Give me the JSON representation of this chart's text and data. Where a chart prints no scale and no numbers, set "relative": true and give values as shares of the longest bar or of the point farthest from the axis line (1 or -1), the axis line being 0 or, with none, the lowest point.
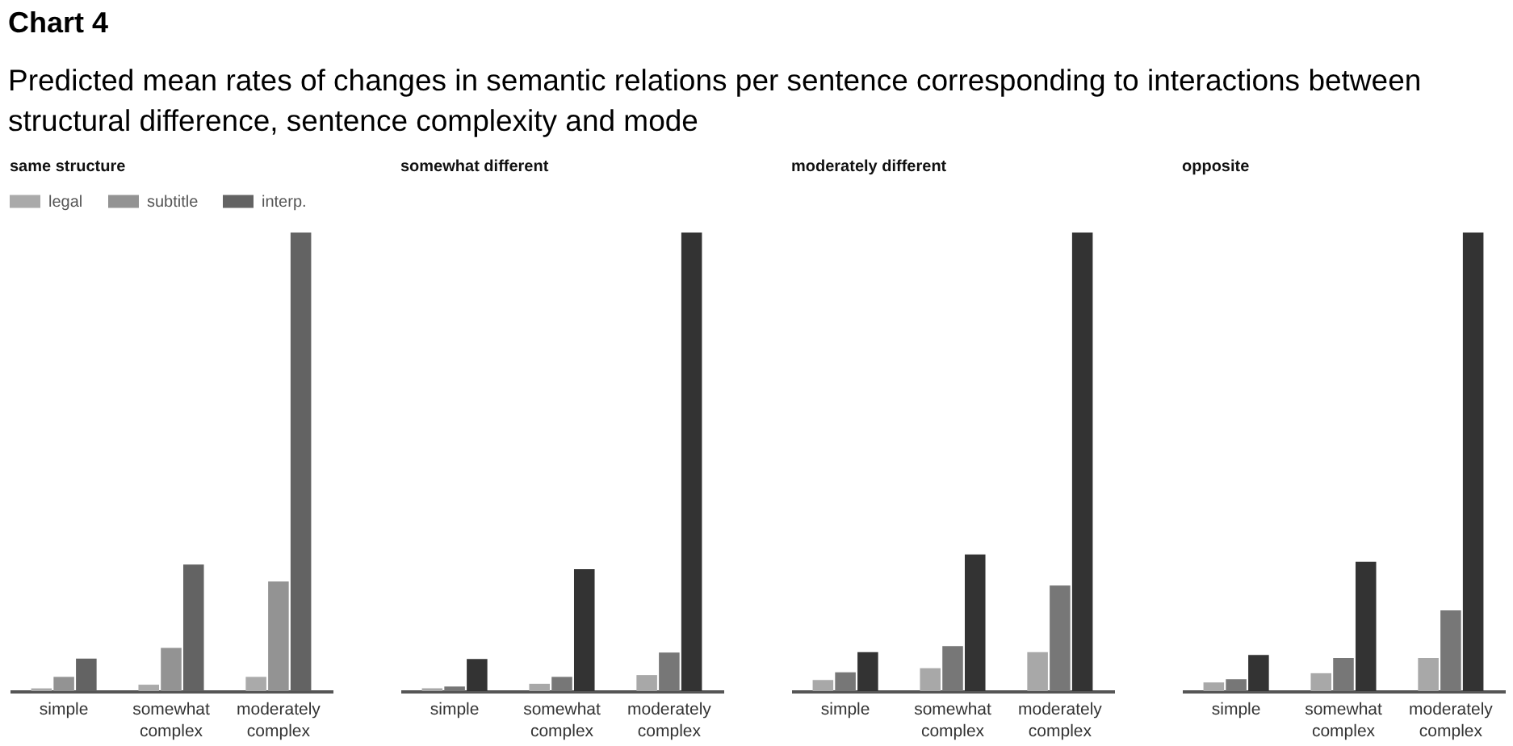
{
  "chart_data": [
    {
      "type": "other",
      "title": "Chart 4",
      "subtitle": "Predicted mean rates of changes in semantic relations per sentence corresponding to interactions between structural difference, sentence complexity and mode"
    },
    {
      "type": "bar",
      "title": "same structure",
      "categories": [
        "simple",
        "somewhat complex",
        "moderately complex"
      ],
      "relative": true,
      "legend": "top left",
      "series": [
        {
          "name": "legal",
          "color": "#aaaaaa",
          "values": [
            0.006,
            0.014,
            0.031
          ]
        },
        {
          "name": "subtitle",
          "color": "#939393",
          "values": [
            0.031,
            0.094,
            0.239
          ]
        },
        {
          "name": "interp.",
          "color": "#636363",
          "values": [
            0.071,
            0.276,
            1
          ]
        }
      ]
    },
    {
      "type": "bar",
      "title": "somewhat different",
      "categories": [
        "simple",
        "somewhat complex",
        "moderately complex"
      ],
      "relative": true,
      "series": [
        {
          "color": "#a8a8a8",
          "values": [
            0.006,
            0.016,
            0.035
          ]
        },
        {
          "color": "#777777",
          "values": [
            0.01,
            0.031,
            0.084
          ]
        },
        {
          "color": "#333333",
          "values": [
            0.07,
            0.266,
            1
          ]
        }
      ]
    },
    {
      "type": "bar",
      "title": "moderately different",
      "categories": [
        "simple",
        "somewhat complex",
        "moderately complex"
      ],
      "relative": true,
      "series": [
        {
          "color": "#a8a8a8",
          "values": [
            0.024,
            0.05,
            0.085
          ]
        },
        {
          "color": "#777777",
          "values": [
            0.041,
            0.098,
            0.23
          ]
        },
        {
          "color": "#333333",
          "values": [
            0.085,
            0.298,
            1
          ]
        }
      ]
    },
    {
      "type": "bar",
      "title": "opposite",
      "categories": [
        "simple",
        "somewhat complex",
        "moderately complex"
      ],
      "relative": true,
      "series": [
        {
          "color": "#a8a8a8",
          "values": [
            0.019,
            0.039,
            0.072
          ]
        },
        {
          "color": "#777777",
          "values": [
            0.026,
            0.072,
            0.176
          ]
        },
        {
          "color": "#333333",
          "values": [
            0.079,
            0.282,
            1
          ]
        }
      ]
    }
  ]
}
